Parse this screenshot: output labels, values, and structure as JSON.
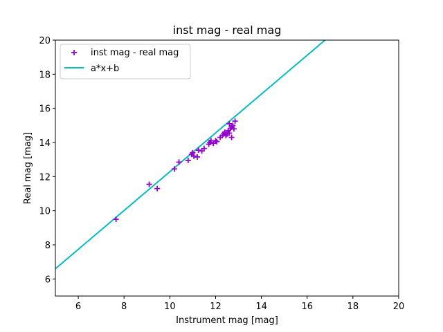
{
  "chart_data": {
    "type": "scatter",
    "title": "inst mag - real mag",
    "xlabel": "Instrument mag [mag]",
    "ylabel": "Real mag [mag]",
    "xlim": [
      5,
      20
    ],
    "ylim": [
      5,
      20
    ],
    "xticks": [
      6,
      8,
      10,
      12,
      14,
      16,
      18,
      20
    ],
    "yticks": [
      6,
      8,
      10,
      12,
      14,
      16,
      18,
      20
    ],
    "grid": false,
    "legend_position": "upper-left",
    "series": [
      {
        "name": "inst mag - real mag",
        "kind": "scatter",
        "marker": "+",
        "color": "#9400d3",
        "points": [
          [
            7.65,
            9.5
          ],
          [
            9.1,
            11.55
          ],
          [
            9.45,
            11.3
          ],
          [
            10.2,
            12.45
          ],
          [
            10.4,
            12.85
          ],
          [
            10.8,
            12.95
          ],
          [
            10.95,
            13.3
          ],
          [
            11.0,
            13.4
          ],
          [
            11.05,
            13.2
          ],
          [
            11.2,
            13.15
          ],
          [
            11.25,
            13.55
          ],
          [
            11.4,
            13.5
          ],
          [
            11.5,
            13.65
          ],
          [
            11.7,
            13.9
          ],
          [
            11.75,
            14.0
          ],
          [
            11.8,
            14.1
          ],
          [
            11.9,
            13.95
          ],
          [
            12.0,
            14.1
          ],
          [
            12.05,
            14.05
          ],
          [
            12.2,
            14.3
          ],
          [
            12.3,
            14.4
          ],
          [
            12.35,
            14.5
          ],
          [
            12.4,
            14.6
          ],
          [
            12.45,
            14.4
          ],
          [
            12.5,
            14.5
          ],
          [
            12.55,
            14.7
          ],
          [
            12.6,
            14.55
          ],
          [
            12.6,
            15.1
          ],
          [
            12.65,
            14.8
          ],
          [
            12.7,
            14.3
          ],
          [
            12.7,
            14.9
          ],
          [
            12.75,
            15.0
          ],
          [
            12.8,
            14.8
          ],
          [
            12.85,
            15.25
          ]
        ]
      },
      {
        "name": "a*x+b",
        "kind": "line",
        "color": "#00bfbf",
        "slope": 1.1375,
        "intercept": 0.912
      }
    ]
  }
}
